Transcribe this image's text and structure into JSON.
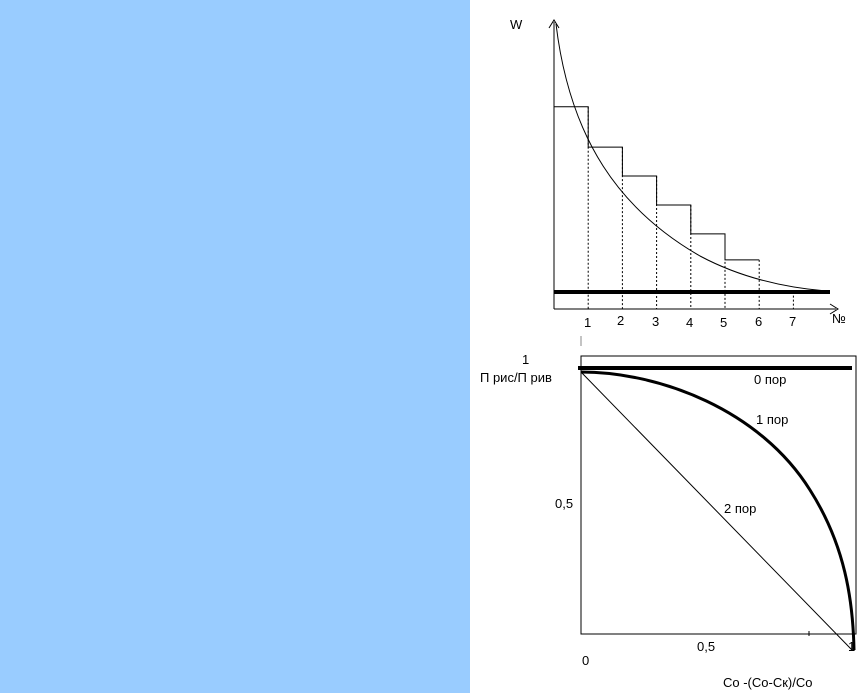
{
  "colors": {
    "left_panel": "#99ccff",
    "background": "#ffffff",
    "line": "#000000"
  },
  "chart_data": [
    {
      "type": "line",
      "ylabel": "W",
      "xlabel": "№",
      "x_tick_labels": [
        "1",
        "2",
        "3",
        "4",
        "5",
        "6",
        "7"
      ],
      "step_heights": [
        0.7,
        0.56,
        0.46,
        0.36,
        0.26,
        0.17
      ],
      "baseline_level": 0.04,
      "curve": "exponential decay",
      "grid": false
    },
    {
      "type": "line",
      "ylabel": "П рис/П рив",
      "xlabel": "Со -(Со-Ск)/Со",
      "y_tick_labels": [
        "1",
        "0,5"
      ],
      "x_tick_labels": [
        "0,5",
        "1"
      ],
      "origin_label": "0",
      "xlim": [
        0,
        1
      ],
      "ylim": [
        0,
        1
      ],
      "series": [
        {
          "name": "0 пор",
          "points": [
            [
              0,
              1
            ],
            [
              1,
              1
            ]
          ]
        },
        {
          "name": "1 пор",
          "points": [
            [
              0,
              1
            ],
            [
              0.3,
              0.95
            ],
            [
              0.55,
              0.83
            ],
            [
              0.75,
              0.65
            ],
            [
              0.9,
              0.42
            ],
            [
              1,
              0
            ]
          ]
        },
        {
          "name": "2 пор",
          "points": [
            [
              0,
              1
            ],
            [
              1,
              0
            ]
          ]
        }
      ],
      "grid": false
    }
  ]
}
